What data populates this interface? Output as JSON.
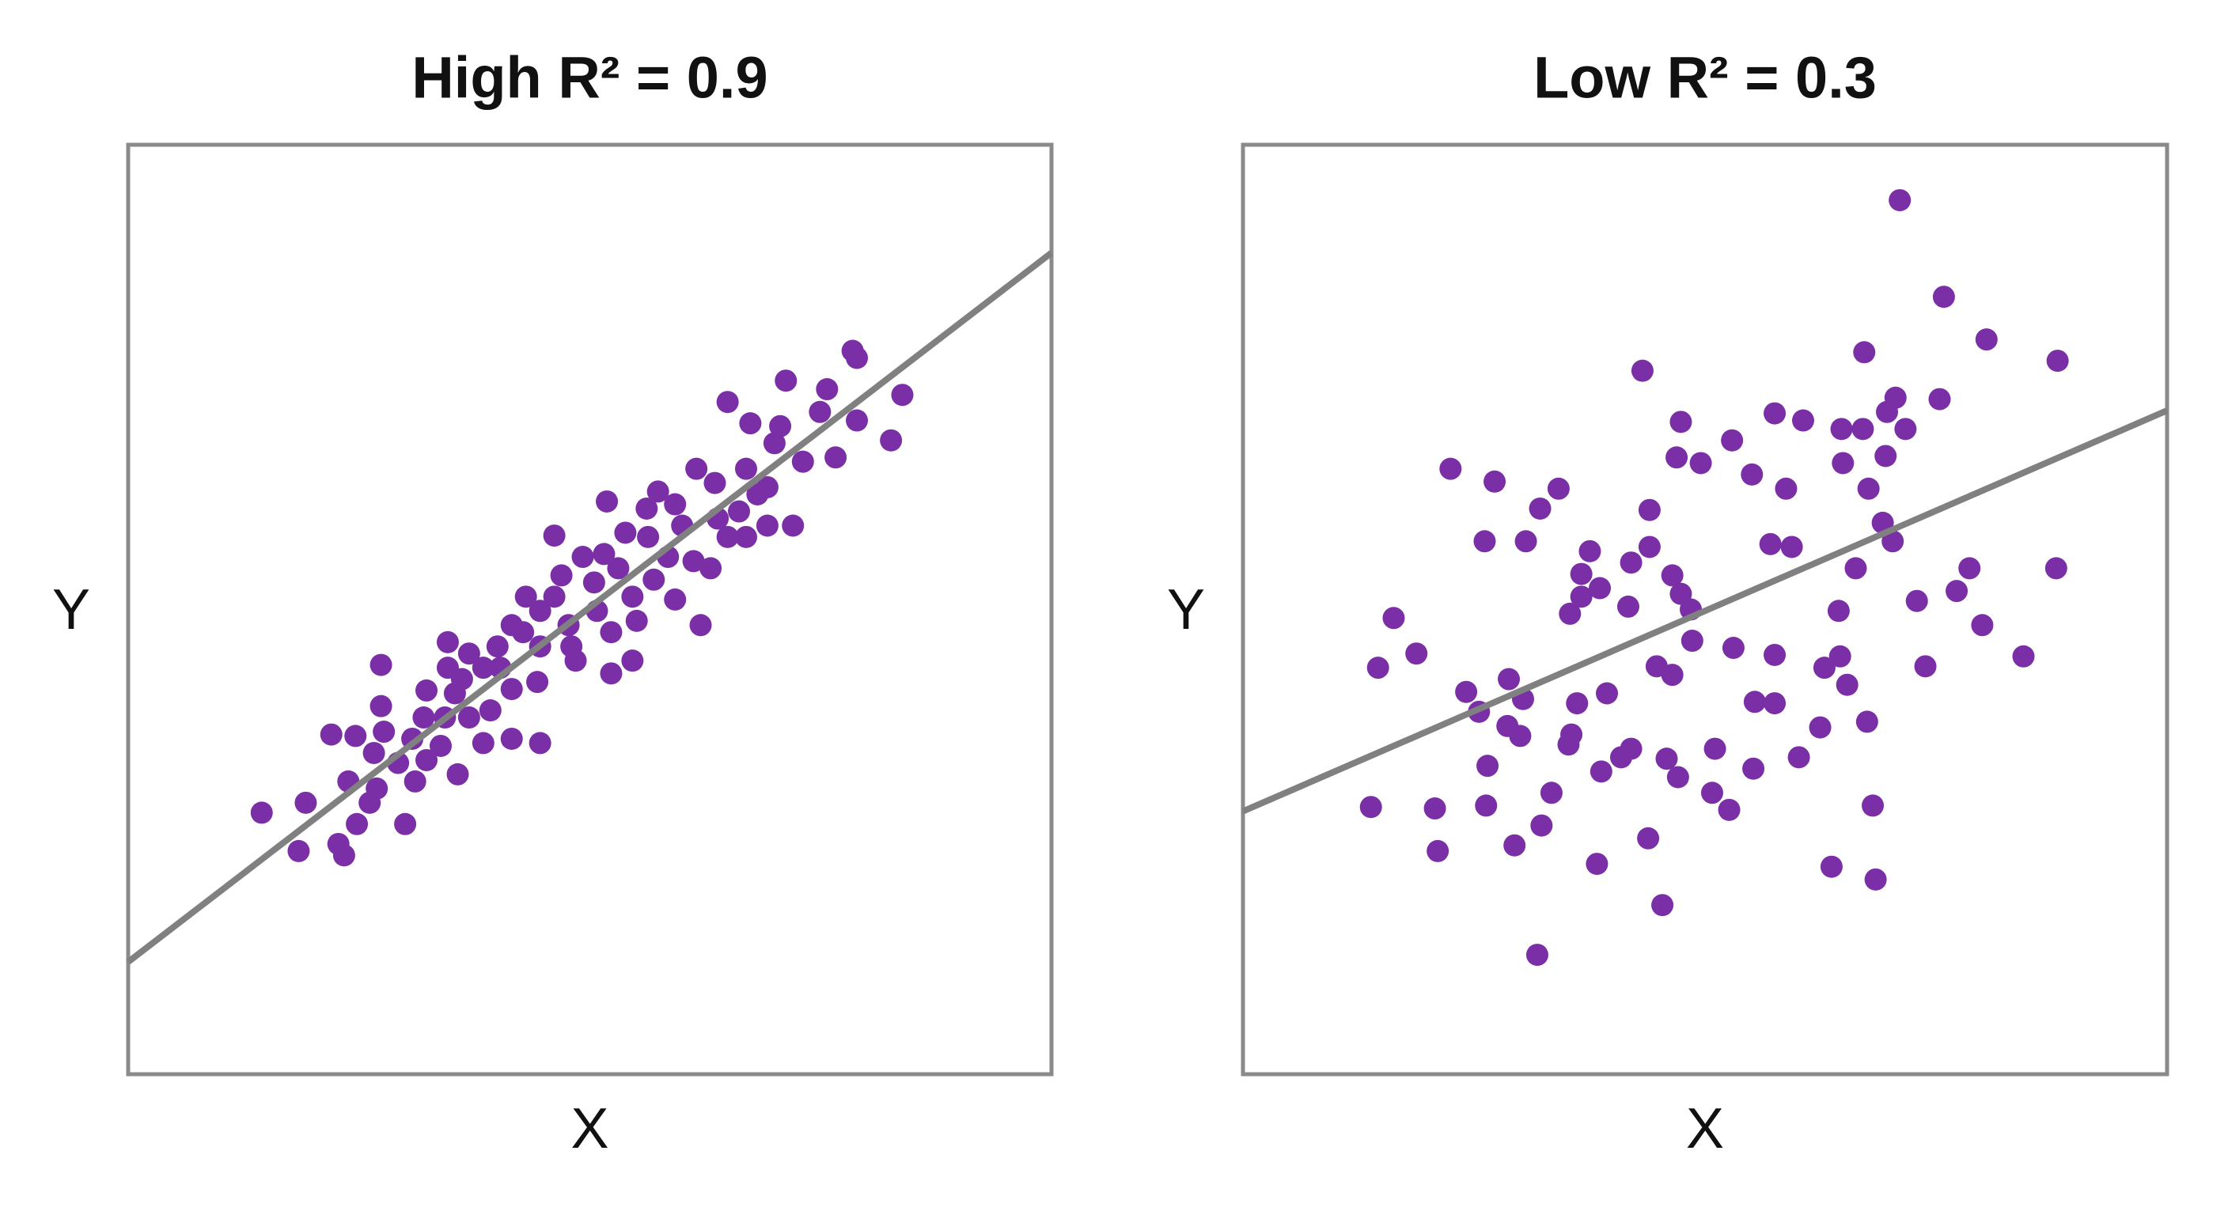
{
  "chart_data": [
    {
      "type": "scatter",
      "title": "High R² = 0.9",
      "x_label": "X",
      "y_label": "Y",
      "xlim": [
        0,
        650
      ],
      "ylim": [
        0,
        654
      ],
      "series": [
        {
          "type": "scatter",
          "color": "#7b2fa6",
          "x": [
            510,
            513,
            545,
            537,
            513,
            492,
            463,
            422,
            438,
            459,
            487,
            475,
            498,
            455,
            435,
            400,
            413,
            450,
            468,
            450,
            435,
            373,
            337,
            365,
            385,
            300,
            320,
            350,
            390,
            410,
            380,
            370,
            355,
            385,
            403,
            358,
            340,
            355,
            340,
            330,
            310,
            300,
            280,
            290,
            315,
            270,
            260,
            250,
            270,
            288,
            225,
            240,
            225,
            210,
            235,
            255,
            240,
            223,
            208,
            178,
            178,
            180,
            200,
            220,
            250,
            270,
            290,
            143,
            160,
            173,
            190,
            210,
            232,
            155,
            175,
            202,
            125,
            170,
            94,
            161,
            195,
            120,
            148,
            152,
            335,
            345,
            305,
            328,
            290,
            278,
            312,
            262,
            230,
            366,
            398,
            422,
            430,
            443,
            415
          ],
          "values": [
            509,
            504,
            478,
            446,
            460,
            482,
            488,
            473,
            458,
            456,
            466,
            431,
            434,
            444,
            426,
            426,
            416,
            413,
            386,
            386,
            378,
            410,
            403,
            398,
            401,
            379,
            364,
            381,
            386,
            356,
            364,
            348,
            336,
            334,
            316,
            319,
            311,
            291,
            282,
            326,
            316,
            336,
            336,
            301,
            291,
            316,
            301,
            286,
            271,
            276,
            304,
            296,
            286,
            270,
            278,
            256,
            251,
            251,
            251,
            288,
            259,
            241,
            236,
            231,
            233,
            236,
            233,
            239,
            238,
            226,
            219,
            221,
            211,
            206,
            201,
            206,
            191,
            191,
            184,
            176,
            176,
            157,
            162,
            154,
            366,
            356,
            351,
            346,
            326,
            311,
            301,
            286,
            268,
            378,
            361,
            378,
            396,
            408,
            391
          ]
        },
        {
          "type": "line",
          "color": "#808080",
          "x": [
            0,
            650
          ],
          "values": [
            79,
            578
          ]
        }
      ]
    },
    {
      "type": "scatter",
      "title": "Low R² = 0.3",
      "x_label": "X",
      "y_label": "Y",
      "xlim": [
        0,
        650
      ],
      "ylim": [
        0,
        654
      ],
      "series": [
        {
          "type": "scatter",
          "color": "#7b2fa6",
          "x": [
            462,
            493,
            523,
            573,
            281,
            437,
            459,
            490,
            308,
            374,
            394,
            421,
            436,
            453,
            466,
            344,
            305,
            322,
            422,
            452,
            146,
            177,
            222,
            209,
            358,
            382,
            440,
            286,
            450,
            170,
            199,
            244,
            286,
            371,
            386,
            457,
            273,
            302,
            431,
            511,
            572,
            238,
            251,
            238,
            230,
            271,
            308,
            315,
            419,
            474,
            502,
            106,
            520,
            316,
            122,
            95,
            345,
            374,
            420,
            409,
            291,
            302,
            480,
            549,
            187,
            157,
            197,
            256,
            235,
            425,
            360,
            374,
            166,
            186,
            195,
            231,
            229,
            439,
            406,
            273,
            266,
            298,
            332,
            391,
            172,
            252,
            306,
            359,
            217,
            330,
            342,
            90,
            135,
            171,
            210,
            191,
            137,
            443,
            285,
            249,
            414,
            445,
            295,
            207
          ],
          "values": [
            615,
            547,
            517,
            502,
            495,
            508,
            476,
            475,
            459,
            465,
            460,
            454,
            454,
            466,
            454,
            446,
            434,
            430,
            430,
            435,
            426,
            417,
            412,
            398,
            422,
            412,
            412,
            397,
            388,
            375,
            375,
            368,
            371,
            373,
            371,
            375,
            360,
            351,
            356,
            356,
            356,
            352,
            342,
            336,
            324,
            329,
            338,
            327,
            326,
            333,
            340,
            321,
            316,
            305,
            296,
            286,
            300,
            295,
            294,
            286,
            287,
            281,
            287,
            294,
            278,
            269,
            264,
            268,
            261,
            274,
            262,
            261,
            255,
            245,
            238,
            239,
            232,
            248,
            244,
            229,
            223,
            222,
            229,
            223,
            217,
            213,
            209,
            215,
            198,
            198,
            186,
            188,
            187,
            189,
            175,
            161,
            157,
            189,
            166,
            148,
            146,
            137,
            119,
            84
          ]
        },
        {
          "type": "line",
          "color": "#808080",
          "x": [
            0,
            650
          ],
          "values": [
            185,
            467
          ]
        }
      ]
    }
  ]
}
